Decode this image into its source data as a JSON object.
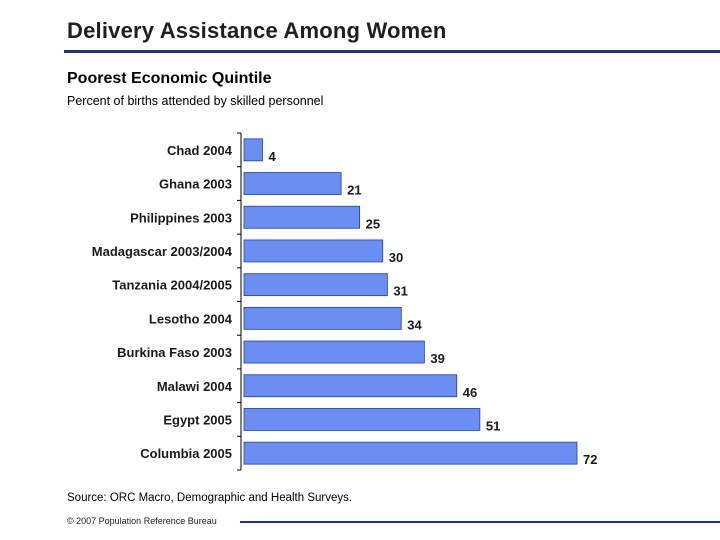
{
  "slide": {
    "title": "Delivery Assistance Among Women",
    "subtitle": "Poorest Economic Quintile",
    "subtitle2": "Percent of births attended by skilled personnel",
    "source": "Source: ORC Macro, Demographic and Health Surveys.",
    "footer": "© 2007 Population Reference Bureau"
  },
  "colors": {
    "bar": "#6b8ff0",
    "bar_edge": "#1f3fa8",
    "title_rule": "#1f3578"
  },
  "chart_data": {
    "type": "bar",
    "orientation": "horizontal",
    "categories": [
      "Chad 2004",
      "Ghana 2003",
      "Philippines 2003",
      "Madagascar 2003/2004",
      "Tanzania 2004/2005",
      "Lesotho 2004",
      "Burkina Faso 2003",
      "Malawi 2004",
      "Egypt 2005",
      "Columbia 2005"
    ],
    "values": [
      4,
      21,
      25,
      30,
      31,
      34,
      39,
      46,
      51,
      72
    ],
    "data_labels": [
      "4",
      "21",
      "25",
      "30",
      "31",
      "34",
      "39",
      "46",
      "51",
      "72"
    ],
    "xlim": [
      0,
      72
    ],
    "grid": false,
    "legend": "none"
  }
}
